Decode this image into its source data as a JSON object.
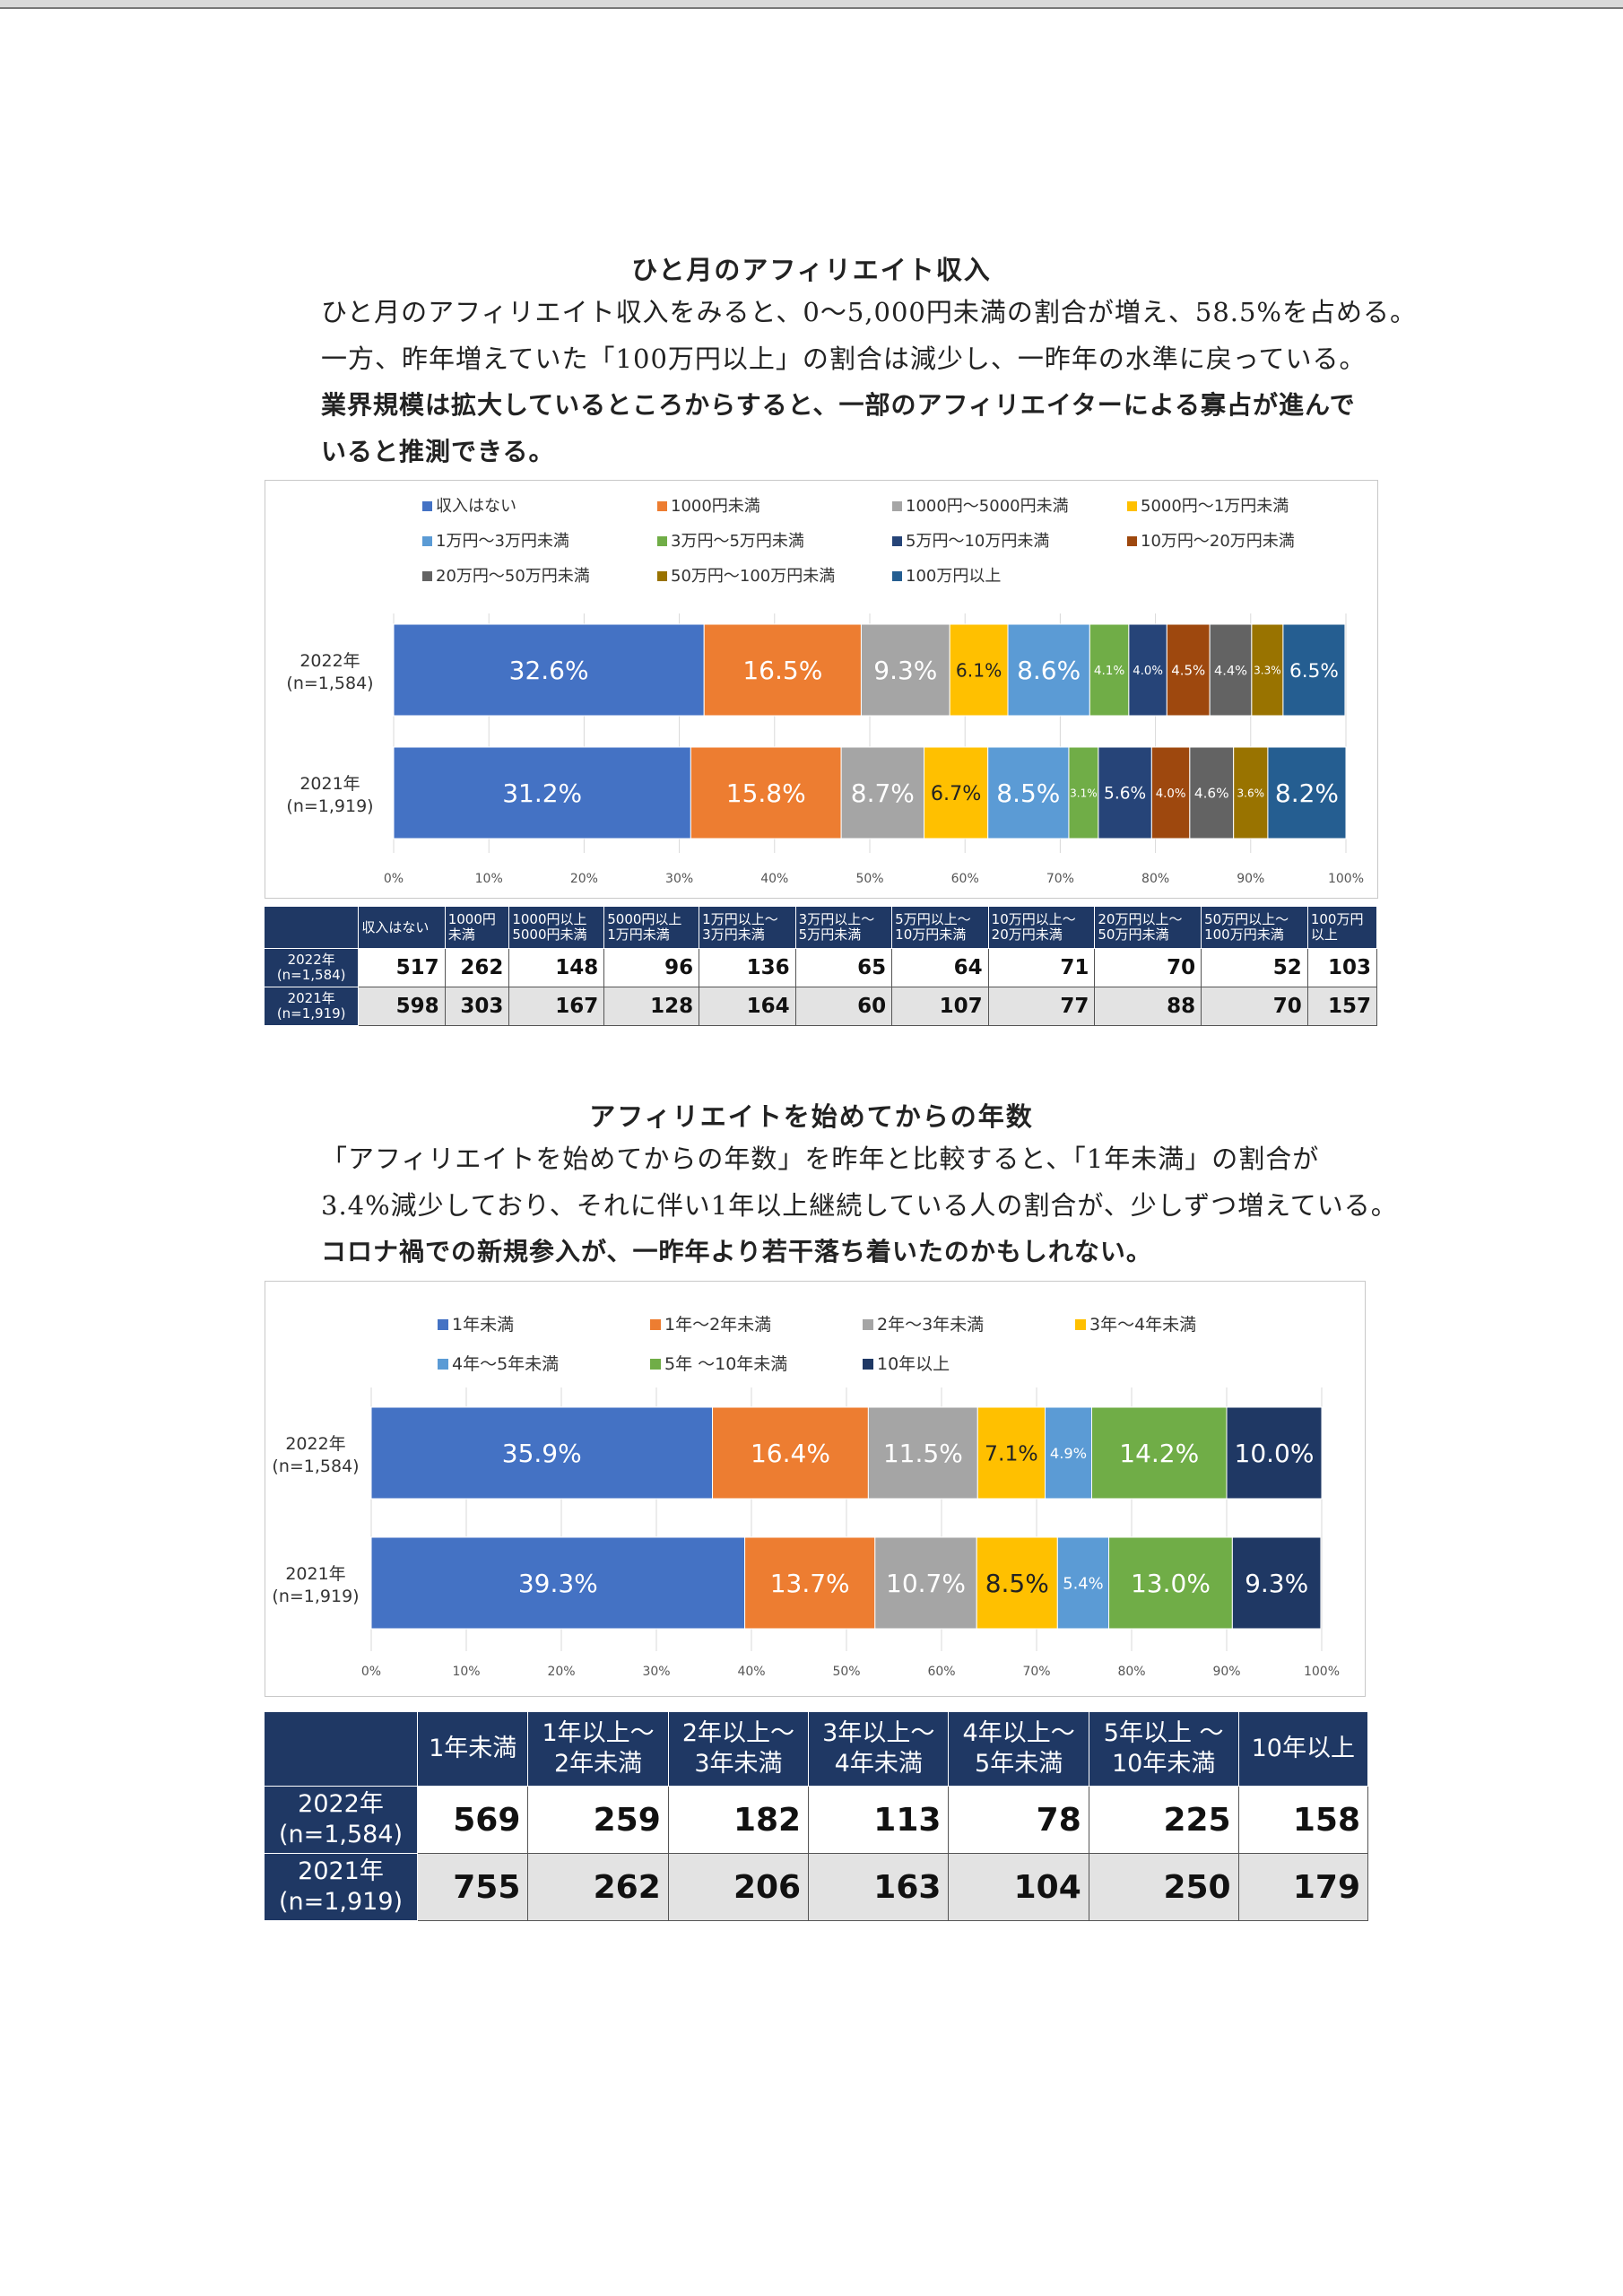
{
  "section1": {
    "title": "ひと月のアフィリエイト収入",
    "line1": "ひと月のアフィリエイト収入をみると、0〜5,000円未満の割合が増え、58.5%を占める。",
    "line2": "一方、昨年増えていた「100万円以上」の割合は減少し、一昨年の水準に戻っている。",
    "line3": "業界規模は拡大しているところからすると、一部のアフィリエイターによる寡占が進んで",
    "line4": "いると推測できる。"
  },
  "section2": {
    "title": "アフィリエイトを始めてからの年数",
    "line1": "「アフィリエイトを始めてからの年数」を昨年と比較すると、「1年未満」の割合が",
    "line2": "3.4%減少しており、それに伴い1年以上継続している人の割合が、少しずつ増えている。",
    "line3": "コロナ禍での新規参入が、一昨年より若干落ち着いたのかもしれない。"
  },
  "table1": {
    "headers": [
      "収入はない",
      "1000円\n未満",
      "1000円以上\n5000円未満",
      "5000円以上\n1万円未満",
      "1万円以上〜\n3万円未満",
      "3万円以上〜\n5万円未満",
      "5万円以上〜\n10万円未満",
      "10万円以上〜\n20万円未満",
      "20万円以上〜\n50万円未満",
      "50万円以上〜\n100万円未満",
      "100万円\n以上"
    ],
    "rows": [
      {
        "label": "2022年\n(n=1,584)",
        "values": [
          "517",
          "262",
          "148",
          "96",
          "136",
          "65",
          "64",
          "71",
          "70",
          "52",
          "103"
        ]
      },
      {
        "label": "2021年\n(n=1,919)",
        "values": [
          "598",
          "303",
          "167",
          "128",
          "164",
          "60",
          "107",
          "77",
          "88",
          "70",
          "157"
        ]
      }
    ]
  },
  "table2": {
    "headers": [
      "1年未満",
      "1年以上〜\n2年未満",
      "2年以上〜\n3年未満",
      "3年以上〜\n4年未満",
      "4年以上〜\n5年未満",
      "5年以上 〜\n10年未満",
      "10年以上"
    ],
    "rows": [
      {
        "label": "2022年\n(n=1,584)",
        "values": [
          "569",
          "259",
          "182",
          "113",
          "78",
          "225",
          "158"
        ]
      },
      {
        "label": "2021年\n(n=1,919)",
        "values": [
          "755",
          "262",
          "206",
          "163",
          "104",
          "250",
          "179"
        ]
      }
    ]
  },
  "chart_data": [
    {
      "type": "bar",
      "orientation": "horizontal-stacked-100",
      "title": "ひと月のアフィリエイト収入",
      "categories": [
        "2022年\n(n=1,584)",
        "2021年\n(n=1,919)"
      ],
      "xlim": [
        0,
        100
      ],
      "xticks": [
        "0%",
        "10%",
        "20%",
        "30%",
        "40%",
        "50%",
        "60%",
        "70%",
        "80%",
        "90%",
        "100%"
      ],
      "legend_position": "top",
      "series": [
        {
          "name": "収入はない",
          "color": "#4472c4",
          "values": [
            32.6,
            31.2
          ],
          "labels": [
            "32.6%",
            "31.2%"
          ]
        },
        {
          "name": "1000円未満",
          "color": "#ed7d31",
          "values": [
            16.5,
            15.8
          ],
          "labels": [
            "16.5%",
            "15.8%"
          ]
        },
        {
          "name": "1000円〜5000円未満",
          "color": "#a5a5a5",
          "values": [
            9.3,
            8.7
          ],
          "labels": [
            "9.3%",
            "8.7%"
          ]
        },
        {
          "name": "5000円〜1万円未満",
          "color": "#ffc000",
          "values": [
            6.1,
            6.7
          ],
          "labels": [
            "6.1%",
            "6.7%"
          ]
        },
        {
          "name": "1万円〜3万円未満",
          "color": "#5b9bd5",
          "values": [
            8.6,
            8.5
          ],
          "labels": [
            "8.6%",
            "8.5%"
          ]
        },
        {
          "name": "3万円〜5万円未満",
          "color": "#70ad47",
          "values": [
            4.1,
            3.1
          ],
          "labels": [
            "4.1%",
            "3.1%"
          ]
        },
        {
          "name": "5万円〜10万円未満",
          "color": "#264478",
          "values": [
            4.0,
            5.6
          ],
          "labels": [
            "4.0%",
            "5.6%"
          ]
        },
        {
          "name": "10万円〜20万円未満",
          "color": "#9e480e",
          "values": [
            4.5,
            4.0
          ],
          "labels": [
            "4.5%",
            "4.0%"
          ]
        },
        {
          "name": "20万円〜50万円未満",
          "color": "#636363",
          "values": [
            4.4,
            4.6
          ],
          "labels": [
            "4.4%",
            "4.6%"
          ]
        },
        {
          "name": "50万円〜100万円未満",
          "color": "#997300",
          "values": [
            3.3,
            3.6
          ],
          "labels": [
            "3.3%",
            "3.6%"
          ]
        },
        {
          "name": "100万円以上",
          "color": "#255e91",
          "values": [
            6.5,
            8.2
          ],
          "labels": [
            "6.5%",
            "8.2%"
          ]
        }
      ]
    },
    {
      "type": "bar",
      "orientation": "horizontal-stacked-100",
      "title": "アフィリエイトを始めてからの年数",
      "categories": [
        "2022年\n(n=1,584)",
        "2021年\n(n=1,919)"
      ],
      "xlim": [
        0,
        100
      ],
      "xticks": [
        "0%",
        "10%",
        "20%",
        "30%",
        "40%",
        "50%",
        "60%",
        "70%",
        "80%",
        "90%",
        "100%"
      ],
      "legend_position": "top",
      "series": [
        {
          "name": "1年未満",
          "color": "#4472c4",
          "values": [
            35.9,
            39.3
          ],
          "labels": [
            "35.9%",
            "39.3%"
          ]
        },
        {
          "name": "1年〜2年未満",
          "color": "#ed7d31",
          "values": [
            16.4,
            13.7
          ],
          "labels": [
            "16.4%",
            "13.7%"
          ]
        },
        {
          "name": "2年〜3年未満",
          "color": "#a5a5a5",
          "values": [
            11.5,
            10.7
          ],
          "labels": [
            "11.5%",
            "10.7%"
          ]
        },
        {
          "name": "3年〜4年未満",
          "color": "#ffc000",
          "values": [
            7.1,
            8.5
          ],
          "labels": [
            "7.1%",
            "8.5%"
          ]
        },
        {
          "name": "4年〜5年未満",
          "color": "#5b9bd5",
          "values": [
            4.9,
            5.4
          ],
          "labels": [
            "4.9%",
            "5.4%"
          ]
        },
        {
          "name": "5年 〜10年未満",
          "color": "#70ad47",
          "values": [
            14.2,
            13.0
          ],
          "labels": [
            "14.2%",
            "13.0%"
          ]
        },
        {
          "name": "10年以上",
          "color": "#1f3864",
          "values": [
            10.0,
            9.3
          ],
          "labels": [
            "10.0%",
            "9.3%"
          ]
        }
      ]
    }
  ]
}
